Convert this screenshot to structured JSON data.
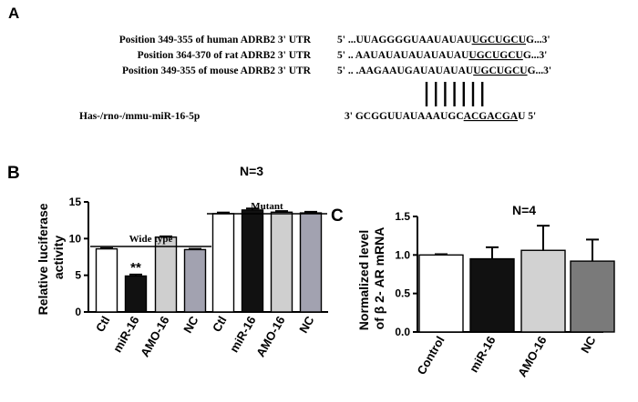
{
  "panel_a": {
    "label": "A",
    "rows": [
      {
        "name": "Position 349-355 of human ADRB2  3' UTR",
        "prefix": "5' ...UUAGGGGUAAUAUAU",
        "site": "UGCUGCU",
        "suffix": "G...3'"
      },
      {
        "name": "Position 364-370 of rat ADRB2  3' UTR",
        "prefix": "5' ..  AAUAUAUAUAUAUAU",
        "site": "UGCUGCU",
        "suffix": "G...3'"
      },
      {
        "name": "Position 349-355 of mouse ADRB2  3' UTR",
        "prefix": "5' .. .AAGAAUGAUAUAUAU",
        "site": "UGCUGCU",
        "suffix": "G...3'"
      }
    ],
    "mirna": {
      "name": "Has-/rno-/mmu-miR-16-5p",
      "prefix": "3'  GCGGUUAUAAAUGC",
      "site": "ACGACGA",
      "suffix": "U  5'"
    },
    "pair_lines": 7
  },
  "chart_data": [
    {
      "panel": "B",
      "type": "bar",
      "title": "N=3",
      "ylabel": "Relative luciferase activity",
      "ylabel_lines": [
        "Relative luciferase",
        "activity"
      ],
      "ylim": [
        0,
        15
      ],
      "yticks": [
        "0",
        "5",
        "10",
        "15"
      ],
      "ytick_values": [
        0,
        5,
        10,
        15
      ],
      "categories": [
        "Ctl",
        "miR-16",
        "AMO-16",
        "NC",
        "Ctl",
        "miR-16",
        "AMO-16",
        "NC"
      ],
      "values": [
        8.6,
        4.9,
        10.2,
        8.5,
        13.4,
        13.9,
        13.6,
        13.5
      ],
      "errors": [
        0.1,
        0.2,
        0.1,
        0.1,
        0.15,
        0.2,
        0.15,
        0.15
      ],
      "colors": [
        "#ffffff",
        "#111111",
        "#cfcfcf",
        "#a2a2b0",
        "#ffffff",
        "#111111",
        "#cfcfcf",
        "#a2a2b0"
      ],
      "groups": [
        {
          "label": "Wide type",
          "start": 0,
          "end": 3
        },
        {
          "label": "Mutant",
          "start": 4,
          "end": 7
        }
      ],
      "annotations": [
        {
          "index": 1,
          "text": "**"
        }
      ]
    },
    {
      "panel": "C",
      "type": "bar",
      "title": "N=4",
      "ylabel_lines": [
        "Normalized level",
        "of β 2- AR mRNA"
      ],
      "ylim": [
        0,
        1.5
      ],
      "yticks": [
        "0.0",
        "0.5",
        "1.0",
        "1.5"
      ],
      "ytick_values": [
        0,
        0.5,
        1.0,
        1.5
      ],
      "categories": [
        "Control",
        "miR-16",
        "AMO-16",
        "NC"
      ],
      "values": [
        1.0,
        0.95,
        1.06,
        0.92
      ],
      "errors": [
        0.01,
        0.15,
        0.32,
        0.28
      ],
      "colors": [
        "#ffffff",
        "#111111",
        "#d2d2d2",
        "#7a7a7a"
      ]
    }
  ]
}
